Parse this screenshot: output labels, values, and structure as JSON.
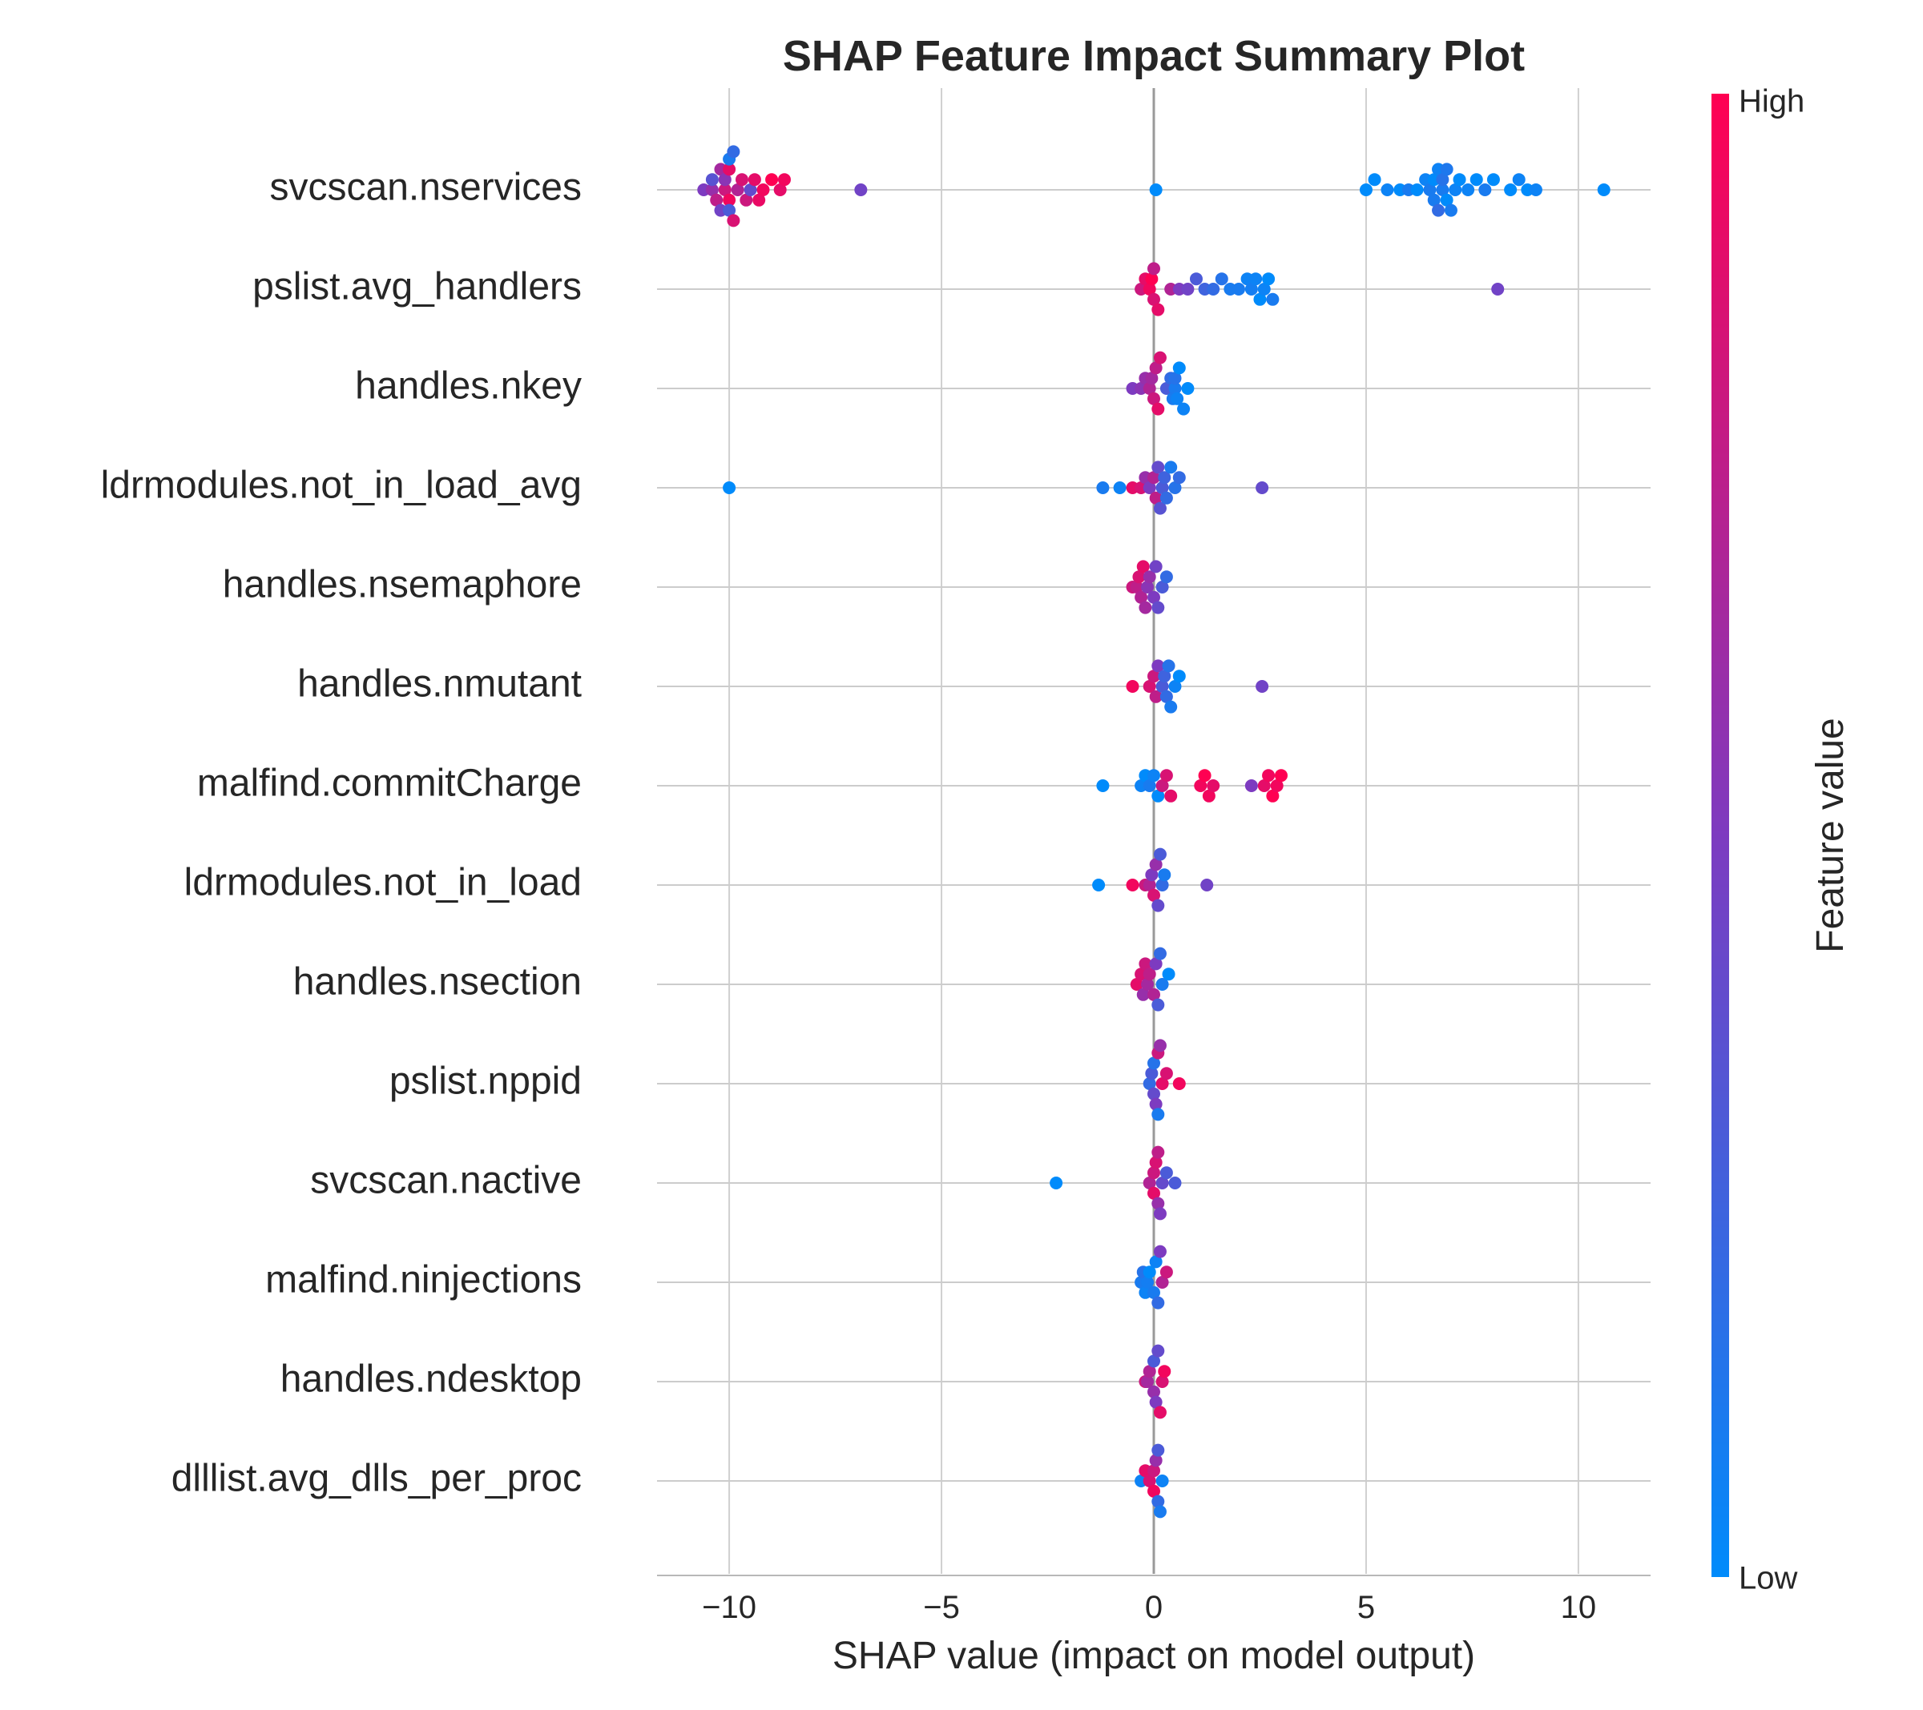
{
  "chart_data": {
    "type": "scatter",
    "title": "SHAP Feature Impact Summary Plot",
    "xlabel": "SHAP value (impact on model output)",
    "xlim": [
      -11.7,
      11.7
    ],
    "x_ticks": [
      -10,
      -5,
      0,
      5,
      10
    ],
    "x_tick_labels": [
      "−10",
      "−5",
      "0",
      "5",
      "10"
    ],
    "colorbar": {
      "label": "Feature value",
      "high_label": "High",
      "low_label": "Low",
      "low_color": "#008bfb",
      "mid_color": "#7d3bc0",
      "high_color": "#ff0052"
    },
    "features": [
      {
        "name": "svcscan.nservices",
        "points": [
          [
            -10.0,
            0.95
          ],
          [
            -10.0,
            0.9
          ],
          [
            -9.9,
            0.85
          ],
          [
            -10.1,
            0.8
          ],
          [
            -10.3,
            0.75
          ],
          [
            -10.6,
            0.5
          ],
          [
            -10.4,
            0.6
          ],
          [
            -10.2,
            0.65
          ],
          [
            -9.8,
            0.7
          ],
          [
            -9.6,
            0.8
          ],
          [
            -9.4,
            0.9
          ],
          [
            -9.2,
            0.95
          ],
          [
            -9.0,
            1.0
          ],
          [
            -8.8,
            0.9
          ],
          [
            -8.7,
            0.95
          ],
          [
            -9.5,
            0.4
          ],
          [
            -9.9,
            0.2
          ],
          [
            -10.0,
            0.3
          ],
          [
            -10.1,
            0.55
          ],
          [
            -10.2,
            0.45
          ],
          [
            -10.4,
            0.35
          ],
          [
            -9.7,
            0.85
          ],
          [
            -9.3,
            0.92
          ],
          [
            -10.0,
            0.1
          ],
          [
            -6.9,
            0.45
          ],
          [
            0.05,
            0.0
          ],
          [
            5.0,
            0.0
          ],
          [
            5.2,
            0.0
          ],
          [
            5.5,
            0.05
          ],
          [
            5.8,
            0.0
          ],
          [
            6.0,
            0.1
          ],
          [
            6.2,
            0.0
          ],
          [
            6.4,
            0.05
          ],
          [
            6.5,
            0.1
          ],
          [
            6.6,
            0.0
          ],
          [
            6.7,
            0.05
          ],
          [
            6.8,
            0.1
          ],
          [
            6.9,
            0.0
          ],
          [
            7.0,
            0.1
          ],
          [
            7.1,
            0.05
          ],
          [
            7.2,
            0.0
          ],
          [
            7.4,
            0.05
          ],
          [
            7.6,
            0.0
          ],
          [
            7.8,
            0.1
          ],
          [
            8.0,
            0.0
          ],
          [
            8.4,
            0.0
          ],
          [
            8.6,
            0.05
          ],
          [
            8.8,
            0.0
          ],
          [
            9.0,
            0.05
          ],
          [
            10.6,
            0.0
          ],
          [
            6.8,
            0.15
          ],
          [
            6.7,
            0.2
          ],
          [
            6.6,
            0.1
          ],
          [
            6.9,
            0.12
          ]
        ]
      },
      {
        "name": "pslist.avg_handlers",
        "points": [
          [
            -0.2,
            0.9
          ],
          [
            -0.1,
            0.95
          ],
          [
            0.0,
            0.85
          ],
          [
            -0.3,
            0.8
          ],
          [
            0.1,
            0.9
          ],
          [
            -0.05,
            1.0
          ],
          [
            0.0,
            0.75
          ],
          [
            0.4,
            0.7
          ],
          [
            0.6,
            0.5
          ],
          [
            0.8,
            0.45
          ],
          [
            1.0,
            0.3
          ],
          [
            1.2,
            0.25
          ],
          [
            1.4,
            0.2
          ],
          [
            1.6,
            0.15
          ],
          [
            1.8,
            0.1
          ],
          [
            2.0,
            0.1
          ],
          [
            2.2,
            0.05
          ],
          [
            2.4,
            0.05
          ],
          [
            2.5,
            0.0
          ],
          [
            2.6,
            0.05
          ],
          [
            2.7,
            0.0
          ],
          [
            2.8,
            0.1
          ],
          [
            2.3,
            0.08
          ],
          [
            8.1,
            0.45
          ]
        ]
      },
      {
        "name": "handles.nkey",
        "points": [
          [
            -0.5,
            0.5
          ],
          [
            -0.3,
            0.55
          ],
          [
            -0.2,
            0.6
          ],
          [
            -0.1,
            0.7
          ],
          [
            0.0,
            0.8
          ],
          [
            0.05,
            0.75
          ],
          [
            0.1,
            0.9
          ],
          [
            -0.05,
            0.65
          ],
          [
            0.15,
            0.85
          ],
          [
            0.3,
            0.3
          ],
          [
            0.4,
            0.2
          ],
          [
            0.5,
            0.1
          ],
          [
            0.6,
            0.0
          ],
          [
            0.7,
            0.05
          ],
          [
            0.8,
            0.0
          ],
          [
            0.5,
            0.15
          ],
          [
            0.45,
            0.1
          ],
          [
            0.55,
            0.05
          ]
        ]
      },
      {
        "name": "ldrmodules.not_in_load_avg",
        "points": [
          [
            -10.0,
            0.0
          ],
          [
            -1.2,
            0.1
          ],
          [
            -0.8,
            0.05
          ],
          [
            -0.5,
            0.9
          ],
          [
            -0.3,
            0.85
          ],
          [
            -0.2,
            0.6
          ],
          [
            -0.1,
            0.5
          ],
          [
            0.0,
            0.7
          ],
          [
            0.05,
            0.75
          ],
          [
            0.1,
            0.4
          ],
          [
            0.2,
            0.3
          ],
          [
            0.3,
            0.2
          ],
          [
            0.4,
            0.1
          ],
          [
            0.5,
            0.15
          ],
          [
            0.6,
            0.2
          ],
          [
            0.15,
            0.35
          ],
          [
            0.25,
            0.25
          ],
          [
            2.55,
            0.4
          ]
        ]
      },
      {
        "name": "handles.nsemaphore",
        "points": [
          [
            -0.5,
            0.8
          ],
          [
            -0.4,
            0.75
          ],
          [
            -0.3,
            0.7
          ],
          [
            -0.2,
            0.65
          ],
          [
            -0.1,
            0.6
          ],
          [
            0.0,
            0.5
          ],
          [
            0.1,
            0.4
          ],
          [
            0.2,
            0.3
          ],
          [
            0.3,
            0.2
          ],
          [
            -0.35,
            0.85
          ],
          [
            -0.25,
            0.9
          ],
          [
            -0.15,
            0.55
          ],
          [
            0.05,
            0.45
          ]
        ]
      },
      {
        "name": "handles.nmutant",
        "points": [
          [
            -0.5,
            0.95
          ],
          [
            -0.1,
            0.85
          ],
          [
            0.0,
            0.8
          ],
          [
            0.05,
            0.75
          ],
          [
            0.1,
            0.5
          ],
          [
            0.2,
            0.3
          ],
          [
            0.3,
            0.2
          ],
          [
            0.4,
            0.1
          ],
          [
            0.5,
            0.05
          ],
          [
            0.6,
            0.0
          ],
          [
            0.35,
            0.15
          ],
          [
            0.25,
            0.25
          ],
          [
            2.55,
            0.45
          ]
        ]
      },
      {
        "name": "malfind.commitCharge",
        "points": [
          [
            -1.2,
            0.0
          ],
          [
            -0.3,
            0.05
          ],
          [
            -0.2,
            0.0
          ],
          [
            -0.1,
            0.1
          ],
          [
            0.0,
            0.05
          ],
          [
            0.1,
            0.0
          ],
          [
            0.2,
            0.8
          ],
          [
            0.3,
            0.85
          ],
          [
            0.4,
            0.9
          ],
          [
            1.1,
            0.95
          ],
          [
            1.2,
            1.0
          ],
          [
            1.3,
            0.95
          ],
          [
            1.4,
            0.9
          ],
          [
            2.3,
            0.5
          ],
          [
            2.6,
            0.9
          ],
          [
            2.7,
            0.95
          ],
          [
            2.8,
            1.0
          ],
          [
            2.9,
            0.95
          ],
          [
            3.0,
            1.0
          ]
        ]
      },
      {
        "name": "ldrmodules.not_in_load",
        "points": [
          [
            -1.3,
            0.0
          ],
          [
            -0.5,
            0.95
          ],
          [
            -0.2,
            0.8
          ],
          [
            -0.1,
            0.7
          ],
          [
            0.0,
            0.85
          ],
          [
            0.05,
            0.6
          ],
          [
            0.1,
            0.4
          ],
          [
            0.15,
            0.3
          ],
          [
            0.2,
            0.2
          ],
          [
            0.25,
            0.1
          ],
          [
            -0.05,
            0.5
          ],
          [
            1.25,
            0.45
          ]
        ]
      },
      {
        "name": "handles.nsection",
        "points": [
          [
            -0.4,
            0.9
          ],
          [
            -0.3,
            0.85
          ],
          [
            -0.2,
            0.8
          ],
          [
            -0.1,
            0.75
          ],
          [
            0.0,
            0.7
          ],
          [
            0.05,
            0.5
          ],
          [
            0.1,
            0.3
          ],
          [
            0.15,
            0.2
          ],
          [
            0.2,
            0.1
          ],
          [
            0.35,
            0.0
          ],
          [
            -0.25,
            0.6
          ],
          [
            -0.15,
            0.65
          ]
        ]
      },
      {
        "name": "pslist.nppid",
        "points": [
          [
            -0.1,
            0.2
          ],
          [
            -0.05,
            0.3
          ],
          [
            0.0,
            0.4
          ],
          [
            0.05,
            0.5
          ],
          [
            0.1,
            0.8
          ],
          [
            0.2,
            0.9
          ],
          [
            0.3,
            0.85
          ],
          [
            0.6,
            0.95
          ],
          [
            0.1,
            0.1
          ],
          [
            0.0,
            0.15
          ],
          [
            0.15,
            0.6
          ]
        ]
      },
      {
        "name": "svcscan.nactive",
        "points": [
          [
            -2.3,
            0.0
          ],
          [
            -0.1,
            0.7
          ],
          [
            0.0,
            0.8
          ],
          [
            0.05,
            0.85
          ],
          [
            0.1,
            0.6
          ],
          [
            0.15,
            0.5
          ],
          [
            0.2,
            0.4
          ],
          [
            0.3,
            0.3
          ],
          [
            0.5,
            0.3
          ],
          [
            0.0,
            0.9
          ],
          [
            0.1,
            0.75
          ]
        ]
      },
      {
        "name": "malfind.ninjections",
        "points": [
          [
            -0.3,
            0.1
          ],
          [
            -0.2,
            0.05
          ],
          [
            -0.1,
            0.0
          ],
          [
            0.0,
            0.1
          ],
          [
            0.05,
            0.05
          ],
          [
            0.1,
            0.2
          ],
          [
            0.15,
            0.5
          ],
          [
            0.2,
            0.7
          ],
          [
            0.3,
            0.8
          ],
          [
            -0.25,
            0.15
          ],
          [
            -0.15,
            0.08
          ]
        ]
      },
      {
        "name": "handles.ndesktop",
        "points": [
          [
            -0.2,
            0.8
          ],
          [
            -0.1,
            0.7
          ],
          [
            0.0,
            0.6
          ],
          [
            0.05,
            0.5
          ],
          [
            0.1,
            0.4
          ],
          [
            0.15,
            0.9
          ],
          [
            0.2,
            0.85
          ],
          [
            0.25,
            0.95
          ],
          [
            0.0,
            0.3
          ],
          [
            -0.15,
            0.65
          ]
        ]
      },
      {
        "name": "dlllist.avg_dlls_per_proc",
        "points": [
          [
            -0.2,
            0.9
          ],
          [
            -0.1,
            0.85
          ],
          [
            0.0,
            0.8
          ],
          [
            0.05,
            0.6
          ],
          [
            0.1,
            0.2
          ],
          [
            0.15,
            0.1
          ],
          [
            0.2,
            0.05
          ],
          [
            -0.3,
            0.05
          ],
          [
            0.0,
            0.95
          ],
          [
            0.1,
            0.3
          ]
        ]
      }
    ]
  }
}
